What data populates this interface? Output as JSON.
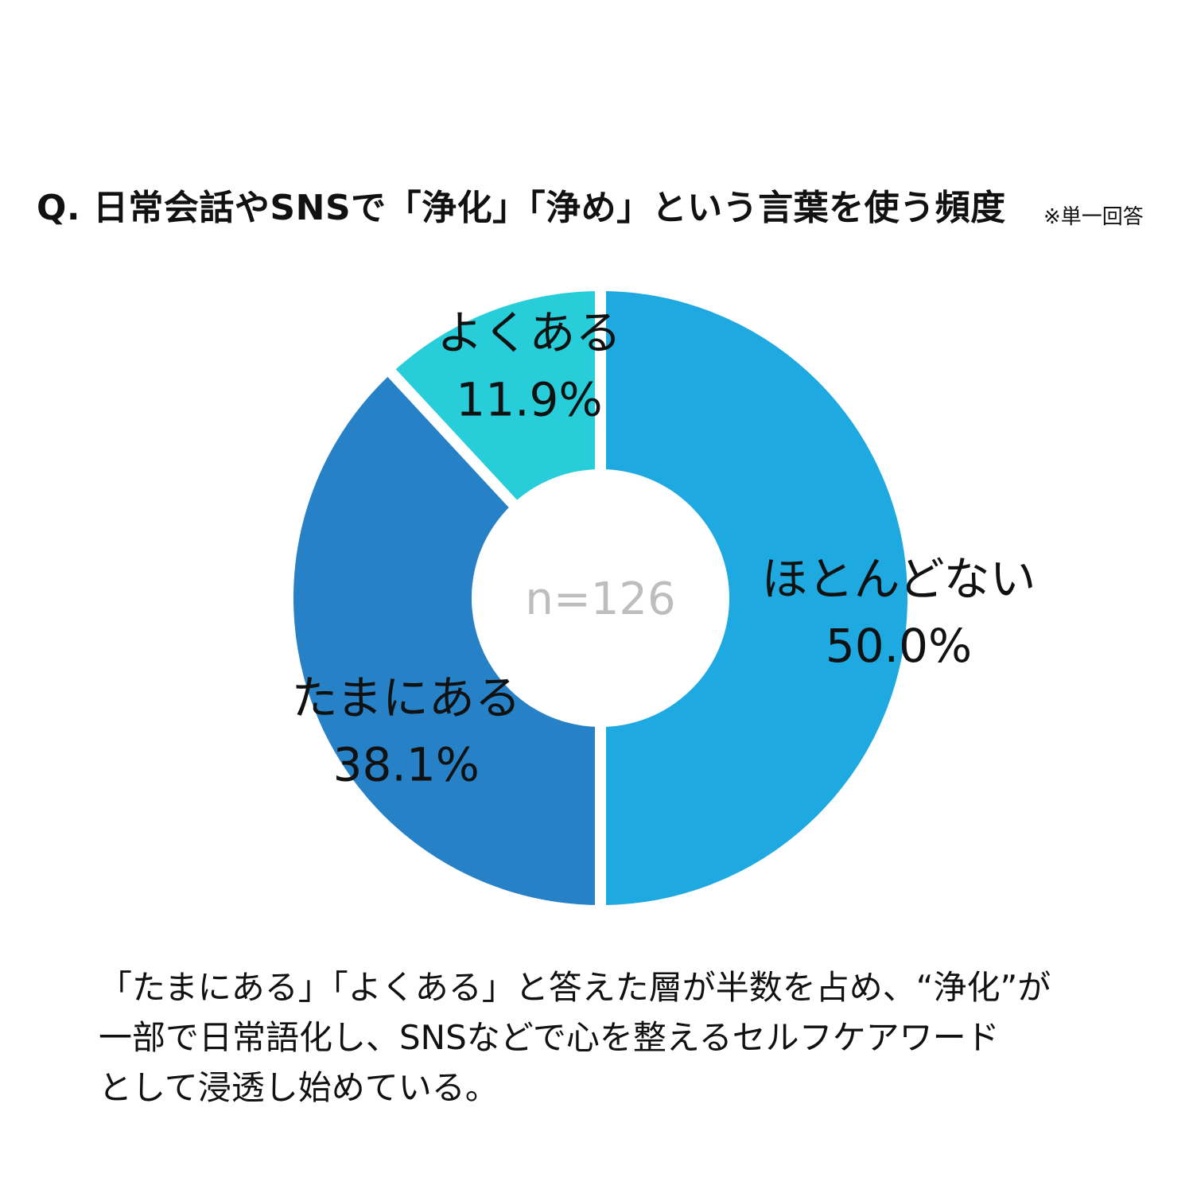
{
  "title": "Q. 日常会話やSNSで「浄化」「浄め」という言葉を使う頻度",
  "note": "※単一回答",
  "chart_data": {
    "type": "pie",
    "donut": true,
    "center_label": "n=126",
    "slices": [
      {
        "label": "ほとんどない",
        "value": 50.0,
        "value_label": "50.0%",
        "color": "#1fa9e1"
      },
      {
        "label": "たまにある",
        "value": 38.1,
        "value_label": "38.1%",
        "color": "#2781c6"
      },
      {
        "label": "よくある",
        "value": 11.9,
        "value_label": "11.9%",
        "color": "#27cdd8"
      }
    ]
  },
  "caption": {
    "lines": [
      "「たまにある」「よくある」と答えた層が半数を占め、“浄化”が",
      "一部で日常語化し、SNSなどで心を整えるセルフケアワード",
      "として浸透し始めている。"
    ]
  }
}
